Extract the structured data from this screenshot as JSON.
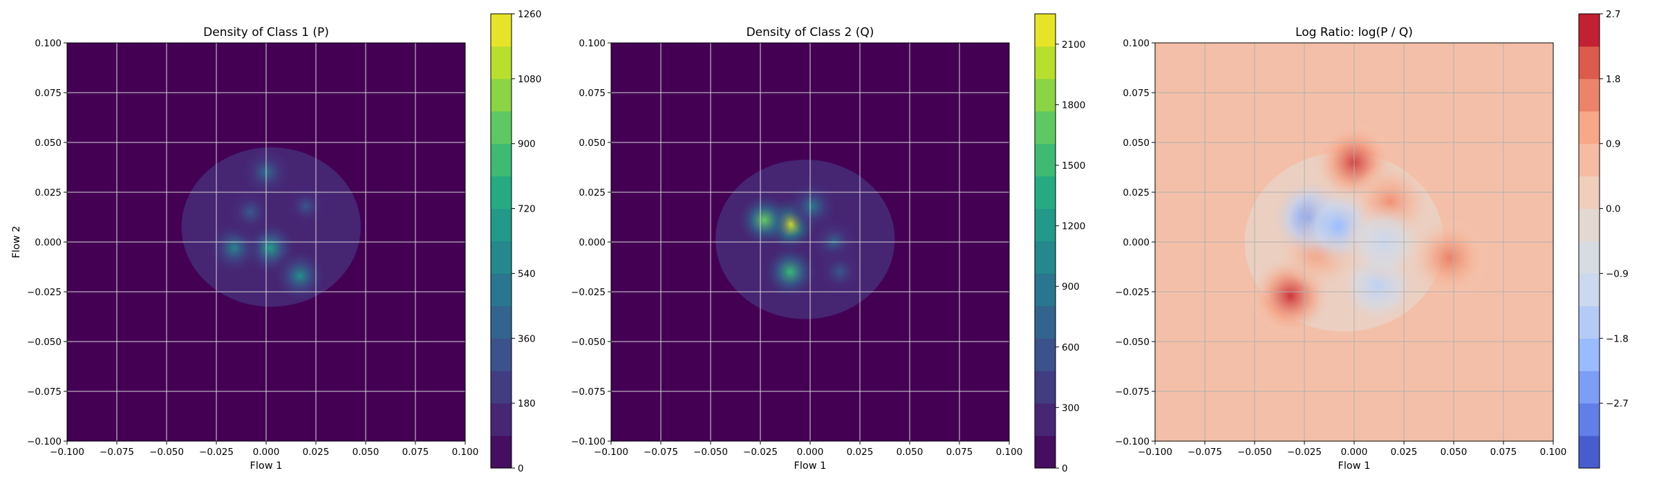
{
  "chart_data": [
    {
      "type": "contour",
      "title": "Density of Class 1 (P)",
      "xlabel": "Flow 1",
      "ylabel": "Flow 2",
      "xlim": [
        -0.1,
        0.1
      ],
      "ylim": [
        -0.1,
        0.1
      ],
      "xticks": [
        "−0.100",
        "−0.075",
        "−0.050",
        "−0.025",
        "0.000",
        "0.025",
        "0.050",
        "0.075",
        "0.100"
      ],
      "yticks": [
        "−0.100",
        "−0.075",
        "−0.050",
        "−0.025",
        "0.000",
        "0.025",
        "0.050",
        "0.075",
        "0.100"
      ],
      "grid": true,
      "colormap": "viridis",
      "colorbar": {
        "min": 0,
        "max": 1260,
        "ticks": [
          "0",
          "180",
          "360",
          "540",
          "720",
          "900",
          "1080",
          "1260"
        ]
      },
      "peaks": [
        {
          "x": 0.002,
          "y": -0.003,
          "value": 700
        },
        {
          "x": -0.016,
          "y": -0.003,
          "value": 560
        },
        {
          "x": 0.017,
          "y": -0.017,
          "value": 620
        },
        {
          "x": 0.0,
          "y": 0.035,
          "value": 450
        },
        {
          "x": -0.008,
          "y": 0.015,
          "value": 350
        },
        {
          "x": 0.02,
          "y": 0.018,
          "value": 320
        }
      ]
    },
    {
      "type": "contour",
      "title": "Density of Class 2 (Q)",
      "xlabel": "Flow 1",
      "ylabel": "",
      "xlim": [
        -0.1,
        0.1
      ],
      "ylim": [
        -0.1,
        0.1
      ],
      "xticks": [
        "−0.100",
        "−0.075",
        "−0.050",
        "−0.025",
        "0.000",
        "0.025",
        "0.050",
        "0.075",
        "0.100"
      ],
      "yticks": [
        "−0.100",
        "−0.075",
        "−0.050",
        "−0.025",
        "0.000",
        "0.025",
        "0.050",
        "0.075",
        "0.100"
      ],
      "grid": true,
      "colormap": "viridis",
      "colorbar": {
        "min": 0,
        "max": 2250,
        "ticks": [
          "0",
          "300",
          "600",
          "900",
          "1200",
          "1500",
          "1800",
          "2100"
        ]
      },
      "peaks": [
        {
          "x": -0.01,
          "y": 0.009,
          "value": 2100
        },
        {
          "x": -0.023,
          "y": 0.011,
          "value": 1700
        },
        {
          "x": -0.01,
          "y": -0.015,
          "value": 1500
        },
        {
          "x": 0.001,
          "y": 0.018,
          "value": 900
        },
        {
          "x": 0.012,
          "y": 0.0,
          "value": 700
        },
        {
          "x": 0.015,
          "y": -0.015,
          "value": 600
        }
      ]
    },
    {
      "type": "contour",
      "title": "Log Ratio: log(P / Q)",
      "xlabel": "Flow 1",
      "ylabel": "",
      "xlim": [
        -0.1,
        0.1
      ],
      "ylim": [
        -0.1,
        0.1
      ],
      "xticks": [
        "−0.100",
        "−0.075",
        "−0.050",
        "−0.025",
        "0.000",
        "0.025",
        "0.050",
        "0.075",
        "0.100"
      ],
      "yticks": [
        "−0.100",
        "−0.075",
        "−0.050",
        "−0.025",
        "0.000",
        "0.025",
        "0.050",
        "0.075",
        "0.100"
      ],
      "grid": true,
      "colormap": "coolwarm",
      "colorbar": {
        "min": -3.6,
        "max": 2.7,
        "ticks": [
          "−2.7",
          "−1.8",
          "−0.9",
          "0.0",
          "0.9",
          "1.8",
          "2.7"
        ]
      },
      "features": [
        {
          "x": 0.0,
          "y": 0.04,
          "value": 2.2
        },
        {
          "x": -0.032,
          "y": -0.027,
          "value": 2.3
        },
        {
          "x": 0.048,
          "y": -0.008,
          "value": 1.6
        },
        {
          "x": 0.018,
          "y": 0.02,
          "value": 1.4
        },
        {
          "x": -0.018,
          "y": -0.004,
          "value": 1.3
        },
        {
          "x": -0.022,
          "y": 0.012,
          "value": -2.6
        },
        {
          "x": -0.008,
          "y": 0.008,
          "value": -2.0
        },
        {
          "x": 0.012,
          "y": -0.022,
          "value": -1.4
        },
        {
          "x": 0.015,
          "y": 0.0,
          "value": -1.2
        }
      ]
    }
  ]
}
